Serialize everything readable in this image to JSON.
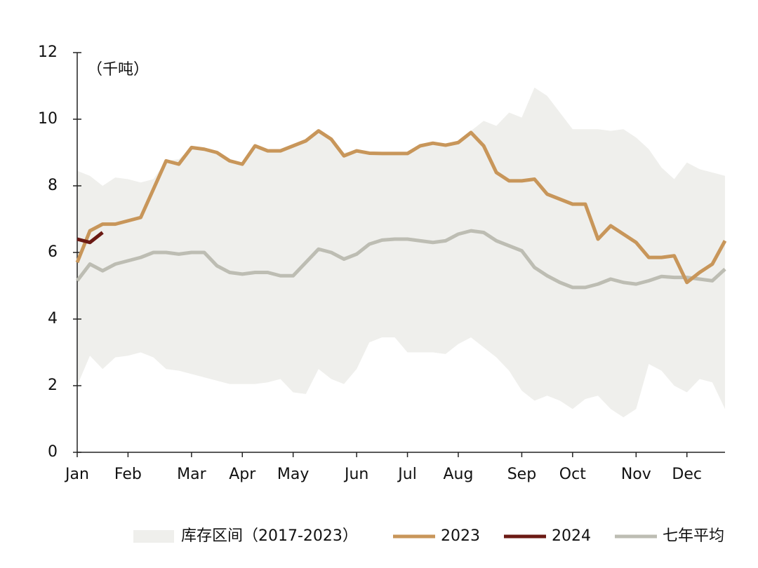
{
  "chart_data": {
    "type": "line",
    "unit_label": "（千吨）",
    "categories": [
      "Jan",
      null,
      null,
      null,
      "Feb",
      null,
      null,
      null,
      null,
      "Mar",
      null,
      null,
      null,
      "Apr",
      null,
      null,
      null,
      "May",
      null,
      null,
      null,
      null,
      "Jun",
      null,
      null,
      null,
      "Jul",
      null,
      null,
      null,
      "Aug",
      null,
      null,
      null,
      null,
      "Sep",
      null,
      null,
      null,
      "Oct",
      null,
      null,
      null,
      null,
      "Nov",
      null,
      null,
      null,
      "Dec",
      null,
      null,
      null
    ],
    "ylim": [
      0,
      12
    ],
    "yticks": [
      0,
      2,
      4,
      6,
      8,
      10,
      12
    ],
    "series": [
      {
        "name": "库存区间（2017-2023）",
        "color": "#efefec",
        "upper": [
          8.45,
          8.3,
          8.0,
          8.25,
          8.2,
          8.1,
          8.2,
          8.75,
          8.8,
          9.15,
          9.1,
          9.0,
          8.75,
          8.7,
          9.2,
          9.1,
          9.1,
          9.2,
          9.4,
          9.7,
          9.4,
          9.0,
          9.05,
          9.0,
          9.0,
          9.0,
          9.0,
          9.2,
          9.3,
          9.25,
          9.35,
          9.65,
          9.95,
          9.8,
          10.2,
          10.05,
          10.95,
          10.7,
          10.2,
          9.7,
          9.7,
          9.7,
          9.65,
          9.7,
          9.45,
          9.1,
          8.55,
          8.2,
          8.7,
          8.5,
          8.4,
          8.3
        ],
        "lower": [
          2.0,
          2.9,
          2.5,
          2.85,
          2.9,
          3.0,
          2.85,
          2.5,
          2.45,
          2.35,
          2.25,
          2.15,
          2.05,
          2.05,
          2.05,
          2.1,
          2.2,
          1.8,
          1.75,
          2.5,
          2.2,
          2.05,
          2.5,
          3.3,
          3.45,
          3.45,
          3.0,
          3.0,
          3.0,
          2.95,
          3.25,
          3.45,
          3.15,
          2.85,
          2.45,
          1.85,
          1.55,
          1.7,
          1.55,
          1.3,
          1.6,
          1.7,
          1.3,
          1.05,
          1.3,
          2.65,
          2.45,
          2.0,
          1.8,
          2.2,
          2.1,
          1.3
        ]
      },
      {
        "name": "2023",
        "color": "#c8965a",
        "values": [
          5.7,
          6.65,
          6.85,
          6.85,
          6.95,
          7.05,
          7.9,
          8.75,
          8.65,
          9.15,
          9.1,
          9.0,
          8.75,
          8.65,
          9.2,
          9.05,
          9.05,
          9.2,
          9.35,
          9.65,
          9.4,
          8.9,
          9.05,
          8.98,
          8.97,
          8.97,
          8.97,
          9.2,
          9.28,
          9.22,
          9.3,
          9.6,
          9.2,
          8.4,
          8.15,
          8.15,
          8.2,
          7.75,
          7.6,
          7.45,
          7.45,
          6.4,
          6.8,
          6.55,
          6.3,
          5.85,
          5.85,
          5.9,
          5.1,
          5.4,
          5.65,
          6.35
        ]
      },
      {
        "name": "2024",
        "color": "#6b1a14",
        "values": [
          6.4,
          6.3,
          6.6,
          null,
          null,
          null,
          null,
          null,
          null,
          null,
          null,
          null,
          null,
          null,
          null,
          null,
          null,
          null,
          null,
          null,
          null,
          null,
          null,
          null,
          null,
          null,
          null,
          null,
          null,
          null,
          null,
          null,
          null,
          null,
          null,
          null,
          null,
          null,
          null,
          null,
          null,
          null,
          null,
          null,
          null,
          null,
          null,
          null,
          null,
          null,
          null,
          null
        ]
      },
      {
        "name": "七年平均",
        "color": "#bdbdb3",
        "values": [
          5.15,
          5.65,
          5.45,
          5.65,
          5.75,
          5.85,
          6.0,
          6.0,
          5.95,
          6.0,
          6.0,
          5.6,
          5.4,
          5.35,
          5.4,
          5.4,
          5.3,
          5.3,
          5.7,
          6.1,
          6.0,
          5.8,
          5.95,
          6.25,
          6.37,
          6.4,
          6.4,
          6.35,
          6.3,
          6.35,
          6.55,
          6.65,
          6.6,
          6.35,
          6.2,
          6.05,
          5.55,
          5.3,
          5.1,
          4.95,
          4.95,
          5.05,
          5.2,
          5.1,
          5.05,
          5.15,
          5.28,
          5.25,
          5.25,
          5.2,
          5.15,
          5.5
        ]
      }
    ]
  }
}
